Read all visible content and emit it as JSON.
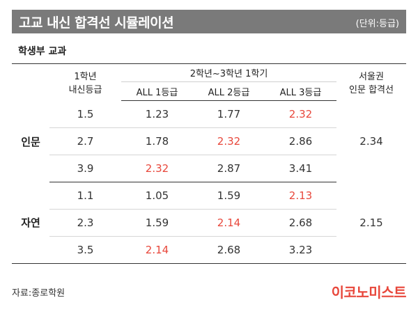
{
  "title": "고교 내신 합격선 시뮬레이션",
  "unit": "(단위:등급)",
  "subtitle": "학생부 교과",
  "headers": {
    "grade1_line1": "1학년",
    "grade1_line2": "내신등급",
    "span": "2학년~3학년 1학기",
    "all1": "ALL 1등급",
    "all2": "ALL 2등급",
    "all3": "ALL 3등급",
    "seoul_line1": "서울권",
    "seoul_line2": "인문 합격선"
  },
  "groups": [
    {
      "track": "인문",
      "seoul": "2.34",
      "rows": [
        {
          "g1": "1.5",
          "a1": "1.23",
          "a2": "1.77",
          "a3": "2.32",
          "highlight": "a3"
        },
        {
          "g1": "2.7",
          "a1": "1.78",
          "a2": "2.32",
          "a3": "2.86",
          "highlight": "a2"
        },
        {
          "g1": "3.9",
          "a1": "2.32",
          "a2": "2.87",
          "a3": "3.41",
          "highlight": "a1"
        }
      ]
    },
    {
      "track": "자연",
      "seoul": "2.15",
      "rows": [
        {
          "g1": "1.1",
          "a1": "1.05",
          "a2": "1.59",
          "a3": "2.13",
          "highlight": "a3"
        },
        {
          "g1": "2.3",
          "a1": "1.59",
          "a2": "2.14",
          "a3": "2.68",
          "highlight": "a2"
        },
        {
          "g1": "3.5",
          "a1": "2.14",
          "a2": "2.68",
          "a3": "3.23",
          "highlight": "a1"
        }
      ]
    }
  ],
  "source": "자료:종로학원",
  "logo": "이코노미스트",
  "colors": {
    "title_bar": "#7a7a7a",
    "highlight": "#e8473b",
    "logo": "#e8473b"
  }
}
